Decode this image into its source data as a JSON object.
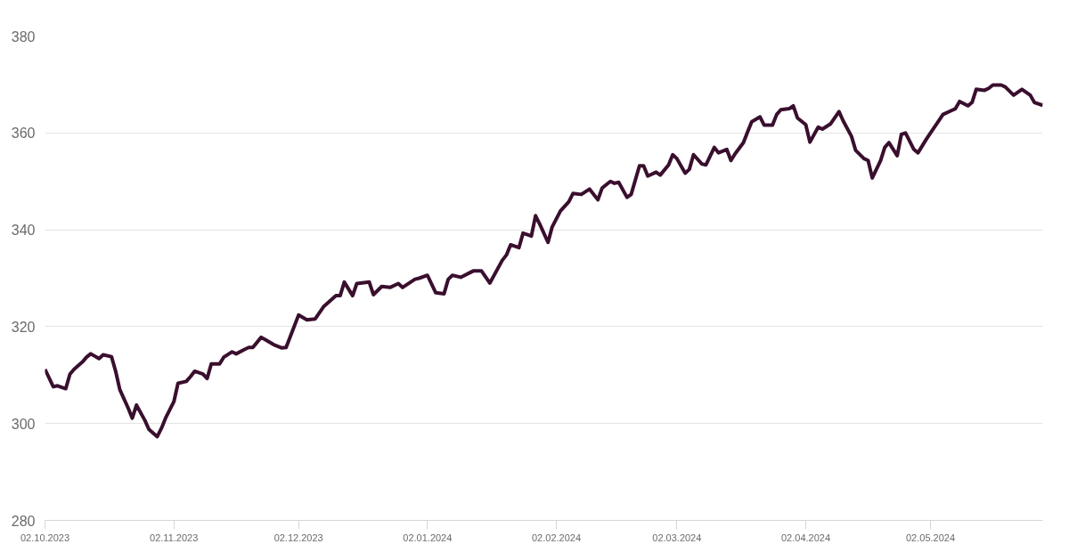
{
  "chart_data": {
    "type": "line",
    "x": [
      "2023-10-02",
      "2023-10-04",
      "2023-10-05",
      "2023-10-07",
      "2023-10-08",
      "2023-10-09",
      "2023-10-11",
      "2023-10-12",
      "2023-10-13",
      "2023-10-15",
      "2023-10-16",
      "2023-10-18",
      "2023-10-19",
      "2023-10-20",
      "2023-10-22",
      "2023-10-23",
      "2023-10-24",
      "2023-10-26",
      "2023-10-27",
      "2023-10-29",
      "2023-10-30",
      "2023-10-31",
      "2023-11-02",
      "2023-11-03",
      "2023-11-05",
      "2023-11-06",
      "2023-11-07",
      "2023-11-09",
      "2023-11-10",
      "2023-11-11",
      "2023-11-13",
      "2023-11-14",
      "2023-11-16",
      "2023-11-17",
      "2023-11-19",
      "2023-11-20",
      "2023-11-21",
      "2023-11-23",
      "2023-11-24",
      "2023-11-26",
      "2023-11-28",
      "2023-11-29",
      "2023-12-02",
      "2023-12-04",
      "2023-12-06",
      "2023-12-08",
      "2023-12-11",
      "2023-12-12",
      "2023-12-13",
      "2023-12-15",
      "2023-12-16",
      "2023-12-19",
      "2023-12-20",
      "2023-12-22",
      "2023-12-24",
      "2023-12-26",
      "2023-12-27",
      "2023-12-30",
      "2023-12-31",
      "2024-01-02",
      "2024-01-04",
      "2024-01-06",
      "2024-01-07",
      "2024-01-08",
      "2024-01-10",
      "2024-01-13",
      "2024-01-15",
      "2024-01-17",
      "2024-01-20",
      "2024-01-21",
      "2024-01-22",
      "2024-01-24",
      "2024-01-25",
      "2024-01-27",
      "2024-01-28",
      "2024-01-29",
      "2024-01-31",
      "2024-02-01",
      "2024-02-03",
      "2024-02-05",
      "2024-02-06",
      "2024-02-08",
      "2024-02-10",
      "2024-02-12",
      "2024-02-13",
      "2024-02-15",
      "2024-02-16",
      "2024-02-17",
      "2024-02-19",
      "2024-02-20",
      "2024-02-22",
      "2024-02-23",
      "2024-02-24",
      "2024-02-26",
      "2024-02-27",
      "2024-02-29",
      "2024-03-01",
      "2024-03-02",
      "2024-03-04",
      "2024-03-05",
      "2024-03-06",
      "2024-03-08",
      "2024-03-09",
      "2024-03-11",
      "2024-03-12",
      "2024-03-14",
      "2024-03-15",
      "2024-03-16",
      "2024-03-18",
      "2024-03-19",
      "2024-03-20",
      "2024-03-22",
      "2024-03-23",
      "2024-03-25",
      "2024-03-26",
      "2024-03-27",
      "2024-03-29",
      "2024-03-30",
      "2024-03-31",
      "2024-04-02",
      "2024-04-03",
      "2024-04-05",
      "2024-04-06",
      "2024-04-08",
      "2024-04-10",
      "2024-04-11",
      "2024-04-13",
      "2024-04-14",
      "2024-04-16",
      "2024-04-17",
      "2024-04-18",
      "2024-04-20",
      "2024-04-21",
      "2024-04-22",
      "2024-04-24",
      "2024-04-25",
      "2024-04-26",
      "2024-04-28",
      "2024-04-29",
      "2024-05-01",
      "2024-05-02",
      "2024-05-04",
      "2024-05-05",
      "2024-05-07",
      "2024-05-08",
      "2024-05-09",
      "2024-05-11",
      "2024-05-12",
      "2024-05-13",
      "2024-05-15",
      "2024-05-16",
      "2024-05-17",
      "2024-05-19",
      "2024-05-20",
      "2024-05-22",
      "2024-05-24",
      "2024-05-26",
      "2024-05-27",
      "2024-05-29"
    ],
    "series": [
      {
        "color": "#3a0f2e",
        "values": [
          311.2,
          307.6,
          307.8,
          307.2,
          310.2,
          311.2,
          312.7,
          313.7,
          314.4,
          313.4,
          314.2,
          313.8,
          310.8,
          307.0,
          303.2,
          301.1,
          303.8,
          300.7,
          298.8,
          297.3,
          299.0,
          301.1,
          304.5,
          308.3,
          308.7,
          309.7,
          310.8,
          310.2,
          309.3,
          312.3,
          312.3,
          313.7,
          314.8,
          314.4,
          315.3,
          315.7,
          315.7,
          317.8,
          317.3,
          316.3,
          315.6,
          315.7,
          322.4,
          321.4,
          321.6,
          324.1,
          326.4,
          326.4,
          329.2,
          326.4,
          328.9,
          329.2,
          326.6,
          328.3,
          328.1,
          328.9,
          328.1,
          329.8,
          330.0,
          330.6,
          327.0,
          326.8,
          329.8,
          330.6,
          330.2,
          331.5,
          331.5,
          329.0,
          333.7,
          334.8,
          336.9,
          336.3,
          339.3,
          338.7,
          342.9,
          341.2,
          337.4,
          340.6,
          343.9,
          345.8,
          347.5,
          347.3,
          348.4,
          346.2,
          348.6,
          350.0,
          349.6,
          349.8,
          346.7,
          347.3,
          353.2,
          353.2,
          351.1,
          351.9,
          351.3,
          353.4,
          355.5,
          354.7,
          351.7,
          352.5,
          355.5,
          353.6,
          353.4,
          357.0,
          355.9,
          356.6,
          354.3,
          355.7,
          358.0,
          360.2,
          362.3,
          363.3,
          361.6,
          361.6,
          363.8,
          364.8,
          365.0,
          365.6,
          363.1,
          361.7,
          358.1,
          361.2,
          360.8,
          361.9,
          364.4,
          362.5,
          359.3,
          356.4,
          354.7,
          354.3,
          350.7,
          354.3,
          357.0,
          358.0,
          355.3,
          359.7,
          360.0,
          356.6,
          355.9,
          358.7,
          360.0,
          362.5,
          363.8,
          364.6,
          365.0,
          366.5,
          365.6,
          366.3,
          369.0,
          368.8,
          369.2,
          369.9,
          369.9,
          369.5,
          367.8,
          369.0,
          367.8,
          366.3,
          365.7
        ]
      }
    ],
    "xlim": [
      "2023-10-02",
      "2024-05-29"
    ],
    "xticks": [
      {
        "value": "2023-10-02",
        "label": "02.10.2023"
      },
      {
        "value": "2023-11-02",
        "label": "02.11.2023"
      },
      {
        "value": "2023-12-02",
        "label": "02.12.2023"
      },
      {
        "value": "2024-01-02",
        "label": "02.01.2024"
      },
      {
        "value": "2024-02-02",
        "label": "02.02.2024"
      },
      {
        "value": "2024-03-02",
        "label": "02.03.2024"
      },
      {
        "value": "2024-04-02",
        "label": "02.04.2024"
      },
      {
        "value": "2024-05-02",
        "label": "02.05.2024"
      }
    ],
    "ylim": [
      280,
      380
    ],
    "yticks": [
      280,
      300,
      320,
      340,
      360,
      380
    ],
    "grid": "y"
  }
}
